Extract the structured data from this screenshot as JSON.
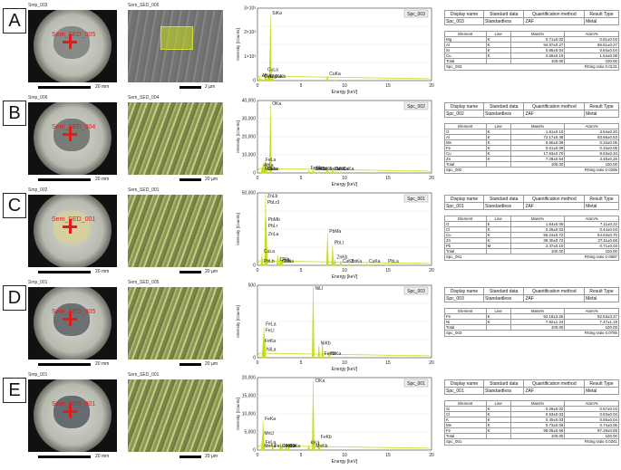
{
  "panels": [
    {
      "letter": "A",
      "sample": "Smp_003",
      "sem": "Sem_SED_005",
      "site": "Sem_SED_005",
      "scale_opt": "20 mm",
      "scale_sem": "2 µm",
      "spc": "Spc_003",
      "elements": [
        {
          "el": "Mg",
          "line": "K",
          "mass": "0.71±0.02",
          "atom": "0.81±0.03"
        },
        {
          "el": "Al",
          "line": "K",
          "mass": "94.87±0.27",
          "atom": "96.81±0.27"
        },
        {
          "el": "Si",
          "line": "K",
          "mass": "0.85±0.04",
          "atom": "0.84±0.04"
        },
        {
          "el": "Cu",
          "line": "K",
          "mass": "3.56±0.19",
          "atom": "1.54±0.08"
        }
      ],
      "total": {
        "mass": "100.00",
        "atom": "100.00"
      },
      "fitting": "Fitting ratio 0.0131",
      "ylabel": "Intensity [Counts]",
      "yticks": [
        "3×10³",
        "2×10³",
        "1×10³",
        "0"
      ],
      "xticks": [
        "0",
        "5",
        "10",
        "15",
        "20"
      ],
      "peaks": [
        "AlKa",
        "CuLl",
        "CuLa",
        "MgKa",
        "SiKa",
        "CuKb",
        "CuKa"
      ]
    },
    {
      "letter": "B",
      "sample": "Smp_006",
      "sem": "Sem_SED_004",
      "site": "Sem_SED_004",
      "scale_opt": "20 mm",
      "scale_sem": "20 µm",
      "spc": "Spc_002",
      "elements": [
        {
          "el": "O",
          "line": "K",
          "mass": "1.81±0.10",
          "atom": "3.54±0.20"
        },
        {
          "el": "Al",
          "line": "K",
          "mass": "72.17±0.48",
          "atom": "83.66±0.53"
        },
        {
          "el": "Mn",
          "line": "K",
          "mass": "0.60±0.09",
          "atom": "0.34±0.05"
        },
        {
          "el": "Fe",
          "line": "K",
          "mass": "0.61±0.09",
          "atom": "0.34±0.05"
        },
        {
          "el": "Cu",
          "line": "K",
          "mass": "17.53±0.70",
          "atom": "8.63±0.34"
        },
        {
          "el": "Zn",
          "line": "K",
          "mass": "7.28±0.54",
          "atom": "3.48±0.26"
        }
      ],
      "total": {
        "mass": "100.00",
        "atom": "100.00"
      },
      "fitting": "Fitting ratio 0.0265",
      "ylabel": "Intensity [Counts]",
      "yticks": [
        "40,000",
        "30,000",
        "20,000",
        "10,000",
        "0"
      ],
      "xticks": [
        "0",
        "5",
        "10",
        "15",
        "20"
      ],
      "peaks": [
        "AlKa",
        "MnLa",
        "FeLa",
        "CuLa",
        "ZnLa",
        "OKa",
        "FeKb",
        "ZnKb",
        "MnKb",
        "CuKb",
        "FeKa",
        "ZnKa",
        "MnKa",
        "CuKa"
      ]
    },
    {
      "letter": "C",
      "sample": "Smp_002",
      "sem": "Sem_SED_001",
      "site": "Sem_SED_001",
      "scale_opt": "20 mm",
      "scale_sem": "20 µm",
      "spc": "Spc_001",
      "elements": [
        {
          "el": "O",
          "line": "K",
          "mass": "1.84±0.06",
          "atom": "7.11±0.22"
        },
        {
          "el": "Cl",
          "line": "K",
          "mass": "0.25±0.02",
          "atom": "0.44±0.04"
        },
        {
          "el": "Cu",
          "line": "K",
          "mass": "56.24±0.72",
          "atom": "54.63±0.70"
        },
        {
          "el": "Zn",
          "line": "K",
          "mass": "39.30±0.72",
          "atom": "37.11±0.68"
        },
        {
          "el": "Pb",
          "line": "M",
          "mass": "2.37±0.10",
          "atom": "0.71±0.03"
        }
      ],
      "total": {
        "mass": "100.00",
        "atom": "100.00"
      },
      "fitting": "Fitting ratio 0.0687",
      "ylabel": "Intensity [Counts]",
      "yticks": [
        "50,000",
        "0"
      ],
      "xticks": [
        "0",
        "5",
        "10",
        "15",
        "20"
      ],
      "peaks": [
        "CuLa",
        "ZnLb",
        "PbMb",
        "ZnLa",
        "ClKb",
        "OKa",
        "ClKa",
        "PbMa",
        "PbLl",
        "ZnKb",
        "CuKb",
        "ZnKa",
        "CuKa",
        "PbLa",
        "PbLb",
        "PbLr3",
        "PbLr"
      ]
    },
    {
      "letter": "D",
      "sample": "Smp_001",
      "sem": "Sem_SED_005",
      "site": "Sem_SED_005",
      "scale_opt": "20 mm",
      "scale_sem": "20 µm",
      "spc": "Spc_003",
      "elements": [
        {
          "el": "Fe",
          "line": "K",
          "mass": "92.18±3.26",
          "atom": "92.53±3.27"
        },
        {
          "el": "Ni",
          "line": "K",
          "mass": "7.82±1.24",
          "atom": "7.47±1.19"
        }
      ],
      "total": {
        "mass": "100.00",
        "atom": "100.00"
      },
      "fitting": "Fitting ratio 0.0756",
      "ylabel": "Intensity [Counts]",
      "yticks": [
        "500",
        "0"
      ],
      "xticks": [
        "0",
        "5",
        "10",
        "15",
        "20"
      ],
      "peaks": [
        "FeKa",
        "FeLl",
        "FeLa",
        "NiLa",
        "NiLl",
        "NiKb",
        "FeKb",
        "NiKa"
      ]
    },
    {
      "letter": "E",
      "sample": "Smp_001",
      "sem": "Sem_SED_001",
      "site": "Sem_SED_001",
      "scale_opt": "20 mm",
      "scale_sem": "20 µm",
      "spc": "Spc_001",
      "elements": [
        {
          "el": "Si",
          "line": "K",
          "mass": "0.29±0.02",
          "atom": "0.57±0.04"
        },
        {
          "el": "Cl",
          "line": "K",
          "mass": "0.53±0.03",
          "atom": "0.83±0.04"
        },
        {
          "el": "K",
          "line": "K",
          "mass": "0.40±0.03",
          "atom": "0.56±0.04"
        },
        {
          "el": "Mn",
          "line": "K",
          "mass": "0.73±0.06",
          "atom": "0.74±0.06"
        },
        {
          "el": "Fe",
          "line": "K",
          "mass": "98.05±0.66",
          "atom": "97.29±0.65"
        }
      ],
      "total": {
        "mass": "100.00",
        "atom": "100.00"
      },
      "fitting": "Fitting ratio 0.0341",
      "ylabel": "Intensity [Counts]",
      "yticks": [
        "20,000",
        "15,000",
        "10,000",
        "5,000",
        "0"
      ],
      "xticks": [
        "0",
        "5",
        "10",
        "15",
        "20"
      ],
      "peaks": [
        "MnLl",
        "FeKa",
        "FeLa",
        "FeLl",
        "ClKb",
        "MnLa",
        "KKb",
        "SiKa",
        "KKa",
        "ClKa",
        "MnKb",
        "FeKb",
        "MnKa"
      ]
    }
  ],
  "headers": {
    "display_name": "Display name",
    "standard_data": "Standard data",
    "quant_method": "Quantification method",
    "result_type": "Result Type",
    "standardless": "Standardless",
    "zaf": "ZAF",
    "metal": "Metal",
    "element": "Element",
    "line": "Line",
    "mass": "Mass%",
    "atom": "Atom%",
    "total": "Total"
  },
  "xlabel": "Energy [keV]",
  "colors": {
    "spectrum": "#c8dc1e",
    "sem_tint": "#b8c870",
    "site": "#e21b1b"
  },
  "chart_data": [
    {
      "type": "line",
      "panel": "A",
      "x": [
        0.28,
        0.52,
        0.93,
        1.25,
        1.49,
        1.74,
        8.05,
        8.9
      ],
      "xlabel": "Energy [keV]",
      "ylabel": "Intensity [Counts]",
      "ylim": [
        0,
        3000
      ],
      "xlim": [
        0,
        20
      ],
      "values": [
        120,
        80,
        350,
        260,
        2700,
        220,
        190,
        50
      ]
    },
    {
      "type": "line",
      "panel": "B",
      "x": [
        0.52,
        0.64,
        0.72,
        0.93,
        1.01,
        1.49,
        5.9,
        6.4,
        6.5,
        7.06,
        8.05,
        8.63,
        8.9,
        9.57
      ],
      "xlabel": "Energy [keV]",
      "ylabel": "Intensity [Counts]",
      "ylim": [
        0,
        40000
      ],
      "xlim": [
        0,
        20
      ],
      "values": [
        3000,
        5000,
        6000,
        7000,
        6000,
        38000,
        1500,
        2500,
        800,
        800,
        3000,
        2000,
        1000,
        800
      ],
      "title": ""
    },
    {
      "type": "line",
      "panel": "C",
      "x": [
        0.52,
        0.93,
        1.01,
        1.03,
        2.34,
        2.62,
        2.82,
        8.05,
        8.63,
        8.9,
        9.57,
        10.55,
        12.6,
        14.8
      ],
      "xlabel": "Energy [keV]",
      "ylabel": "Intensity [Counts]",
      "ylim": [
        0,
        50000
      ],
      "xlim": [
        0,
        20
      ],
      "values": [
        8000,
        52000,
        30000,
        20000,
        7000,
        6000,
        5000,
        22000,
        14000,
        4000,
        3000,
        1500,
        1200,
        800
      ]
    },
    {
      "type": "line",
      "panel": "D",
      "x": [
        0.63,
        0.7,
        0.74,
        0.85,
        6.4,
        7.06,
        7.47,
        8.26
      ],
      "xlabel": "Energy [keV]",
      "ylabel": "Intensity [Counts]",
      "ylim": [
        0,
        700
      ],
      "xlim": [
        0,
        20
      ],
      "values": [
        140,
        240,
        300,
        180,
        720,
        120,
        140,
        60
      ]
    },
    {
      "type": "line",
      "panel": "E",
      "x": [
        0.56,
        0.64,
        0.7,
        1.74,
        2.62,
        2.82,
        3.31,
        3.59,
        5.9,
        6.4,
        6.49,
        7.06
      ],
      "xlabel": "Energy [keV]",
      "ylabel": "Intensity [Counts]",
      "ylim": [
        0,
        20000
      ],
      "xlim": [
        0,
        20
      ],
      "values": [
        4000,
        8000,
        5000,
        1200,
        900,
        1000,
        1000,
        1200,
        1400,
        19000,
        2500,
        3000
      ]
    }
  ]
}
